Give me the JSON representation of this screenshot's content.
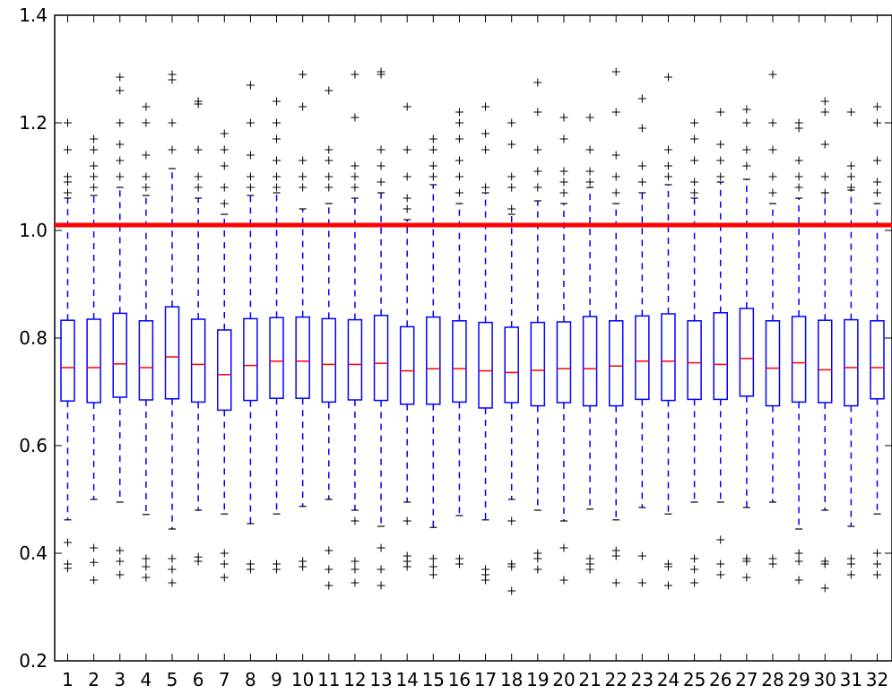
{
  "chart_data": {
    "type": "box",
    "title": "",
    "xlabel": "",
    "ylabel": "",
    "ylim": [
      0.2,
      1.4
    ],
    "y_ticks": [
      "0.2",
      "0.4",
      "0.6",
      "0.8",
      "1.0",
      "1.2",
      "1.4"
    ],
    "categories": [
      "1",
      "2",
      "3",
      "4",
      "5",
      "6",
      "7",
      "8",
      "9",
      "10",
      "11",
      "12",
      "13",
      "14",
      "15",
      "16",
      "17",
      "18",
      "19",
      "20",
      "21",
      "22",
      "23",
      "24",
      "25",
      "26",
      "27",
      "28",
      "29",
      "30",
      "31",
      "32"
    ],
    "grid": false,
    "reference_line": {
      "y": 1.01,
      "color": "#ff0000"
    },
    "colors": {
      "box": "#0000ff",
      "median": "#ff0000",
      "flier": "#000000",
      "axes": "#000000"
    },
    "boxes": [
      {
        "q1": 0.683,
        "median": 0.745,
        "q3": 0.833,
        "whisker_low": 0.462,
        "whisker_high": 1.06,
        "fliers": [
          0.42,
          0.38,
          0.372,
          1.07,
          1.09,
          1.1,
          1.15,
          1.2
        ]
      },
      {
        "q1": 0.68,
        "median": 0.745,
        "q3": 0.835,
        "whisker_low": 0.5,
        "whisker_high": 1.065,
        "fliers": [
          0.41,
          0.383,
          0.35,
          1.08,
          1.1,
          1.12,
          1.15,
          1.17
        ]
      },
      {
        "q1": 0.69,
        "median": 0.752,
        "q3": 0.846,
        "whisker_low": 0.495,
        "whisker_high": 1.08,
        "fliers": [
          0.405,
          0.385,
          0.36,
          1.1,
          1.13,
          1.16,
          1.2,
          1.26,
          1.285
        ]
      },
      {
        "q1": 0.685,
        "median": 0.745,
        "q3": 0.832,
        "whisker_low": 0.472,
        "whisker_high": 1.065,
        "fliers": [
          0.39,
          0.375,
          0.355,
          1.08,
          1.1,
          1.14,
          1.2,
          1.23
        ]
      },
      {
        "q1": 0.687,
        "median": 0.765,
        "q3": 0.858,
        "whisker_low": 0.445,
        "whisker_high": 1.115,
        "fliers": [
          0.39,
          0.37,
          0.345,
          1.15,
          1.2,
          1.28,
          1.29
        ]
      },
      {
        "q1": 0.681,
        "median": 0.751,
        "q3": 0.835,
        "whisker_low": 0.48,
        "whisker_high": 1.06,
        "fliers": [
          0.393,
          0.385,
          1.08,
          1.1,
          1.15,
          1.235,
          1.24
        ]
      },
      {
        "q1": 0.666,
        "median": 0.732,
        "q3": 0.815,
        "whisker_low": 0.473,
        "whisker_high": 1.03,
        "fliers": [
          0.4,
          0.38,
          0.355,
          1.05,
          1.08,
          1.12,
          1.15,
          1.18
        ]
      },
      {
        "q1": 0.684,
        "median": 0.749,
        "q3": 0.836,
        "whisker_low": 0.455,
        "whisker_high": 1.065,
        "fliers": [
          0.38,
          0.37,
          1.08,
          1.1,
          1.14,
          1.2,
          1.27
        ]
      },
      {
        "q1": 0.688,
        "median": 0.757,
        "q3": 0.838,
        "whisker_low": 0.473,
        "whisker_high": 1.07,
        "fliers": [
          0.38,
          0.37,
          1.08,
          1.1,
          1.13,
          1.17,
          1.2,
          1.24
        ]
      },
      {
        "q1": 0.688,
        "median": 0.757,
        "q3": 0.839,
        "whisker_low": 0.487,
        "whisker_high": 1.04,
        "fliers": [
          0.385,
          0.375,
          1.08,
          1.1,
          1.13,
          1.23,
          1.29
        ]
      },
      {
        "q1": 0.681,
        "median": 0.751,
        "q3": 0.836,
        "whisker_low": 0.5,
        "whisker_high": 1.05,
        "fliers": [
          0.405,
          0.37,
          0.34,
          1.08,
          1.1,
          1.13,
          1.15,
          1.26
        ]
      },
      {
        "q1": 0.685,
        "median": 0.751,
        "q3": 0.834,
        "whisker_low": 0.48,
        "whisker_high": 1.06,
        "fliers": [
          0.46,
          0.385,
          0.37,
          0.345,
          1.08,
          1.1,
          1.12,
          1.21,
          1.29
        ]
      },
      {
        "q1": 0.684,
        "median": 0.753,
        "q3": 0.842,
        "whisker_low": 0.45,
        "whisker_high": 1.07,
        "fliers": [
          0.41,
          0.37,
          0.34,
          1.09,
          1.12,
          1.15,
          1.29,
          1.295
        ]
      },
      {
        "q1": 0.677,
        "median": 0.739,
        "q3": 0.821,
        "whisker_low": 0.495,
        "whisker_high": 1.02,
        "fliers": [
          0.46,
          0.395,
          0.385,
          0.375,
          1.04,
          1.06,
          1.1,
          1.15,
          1.23
        ]
      },
      {
        "q1": 0.677,
        "median": 0.743,
        "q3": 0.839,
        "whisker_low": 0.448,
        "whisker_high": 1.085,
        "fliers": [
          0.39,
          0.375,
          0.36,
          1.1,
          1.12,
          1.15,
          1.17
        ]
      },
      {
        "q1": 0.681,
        "median": 0.743,
        "q3": 0.832,
        "whisker_low": 0.47,
        "whisker_high": 1.05,
        "fliers": [
          0.39,
          0.38,
          1.07,
          1.1,
          1.13,
          1.17,
          1.2,
          1.22
        ]
      },
      {
        "q1": 0.67,
        "median": 0.739,
        "q3": 0.829,
        "whisker_low": 0.462,
        "whisker_high": 1.07,
        "fliers": [
          0.37,
          0.36,
          0.35,
          1.08,
          1.15,
          1.18,
          1.23
        ]
      },
      {
        "q1": 0.68,
        "median": 0.736,
        "q3": 0.82,
        "whisker_low": 0.5,
        "whisker_high": 1.03,
        "fliers": [
          0.46,
          0.38,
          0.375,
          0.33,
          1.04,
          1.08,
          1.1,
          1.16,
          1.2
        ]
      },
      {
        "q1": 0.674,
        "median": 0.74,
        "q3": 0.829,
        "whisker_low": 0.48,
        "whisker_high": 1.055,
        "fliers": [
          0.4,
          0.39,
          0.37,
          1.08,
          1.11,
          1.15,
          1.22,
          1.275
        ]
      },
      {
        "q1": 0.68,
        "median": 0.743,
        "q3": 0.83,
        "whisker_low": 0.46,
        "whisker_high": 1.05,
        "fliers": [
          0.41,
          0.35,
          1.07,
          1.09,
          1.11,
          1.17,
          1.21
        ]
      },
      {
        "q1": 0.674,
        "median": 0.743,
        "q3": 0.84,
        "whisker_low": 0.482,
        "whisker_high": 1.08,
        "fliers": [
          0.39,
          0.38,
          0.37,
          1.09,
          1.11,
          1.15,
          1.21
        ]
      },
      {
        "q1": 0.674,
        "median": 0.748,
        "q3": 0.832,
        "whisker_low": 0.462,
        "whisker_high": 1.05,
        "fliers": [
          0.405,
          0.395,
          0.345,
          1.07,
          1.1,
          1.14,
          1.22,
          1.295
        ]
      },
      {
        "q1": 0.686,
        "median": 0.757,
        "q3": 0.841,
        "whisker_low": 0.485,
        "whisker_high": 1.07,
        "fliers": [
          0.395,
          0.345,
          1.09,
          1.12,
          1.19,
          1.245
        ]
      },
      {
        "q1": 0.684,
        "median": 0.757,
        "q3": 0.845,
        "whisker_low": 0.473,
        "whisker_high": 1.085,
        "fliers": [
          0.38,
          0.375,
          0.34,
          1.1,
          1.12,
          1.15,
          1.285
        ]
      },
      {
        "q1": 0.686,
        "median": 0.754,
        "q3": 0.832,
        "whisker_low": 0.495,
        "whisker_high": 1.06,
        "fliers": [
          0.39,
          0.37,
          0.345,
          1.07,
          1.09,
          1.13,
          1.17,
          1.2
        ]
      },
      {
        "q1": 0.686,
        "median": 0.751,
        "q3": 0.847,
        "whisker_low": 0.495,
        "whisker_high": 1.09,
        "fliers": [
          0.425,
          0.38,
          0.36,
          1.1,
          1.13,
          1.16,
          1.22
        ]
      },
      {
        "q1": 0.692,
        "median": 0.762,
        "q3": 0.855,
        "whisker_low": 0.485,
        "whisker_high": 1.095,
        "fliers": [
          0.39,
          0.385,
          0.355,
          1.12,
          1.15,
          1.2,
          1.225
        ]
      },
      {
        "q1": 0.674,
        "median": 0.744,
        "q3": 0.832,
        "whisker_low": 0.495,
        "whisker_high": 1.05,
        "fliers": [
          0.39,
          0.38,
          1.07,
          1.1,
          1.15,
          1.2,
          1.29
        ]
      },
      {
        "q1": 0.681,
        "median": 0.754,
        "q3": 0.84,
        "whisker_low": 0.445,
        "whisker_high": 1.06,
        "fliers": [
          0.4,
          0.385,
          0.35,
          1.08,
          1.1,
          1.13,
          1.19,
          1.2
        ]
      },
      {
        "q1": 0.68,
        "median": 0.741,
        "q3": 0.833,
        "whisker_low": 0.48,
        "whisker_high": 1.07,
        "fliers": [
          0.385,
          0.38,
          0.335,
          1.07,
          1.1,
          1.16,
          1.22,
          1.24
        ]
      },
      {
        "q1": 0.674,
        "median": 0.745,
        "q3": 0.834,
        "whisker_low": 0.45,
        "whisker_high": 1.075,
        "fliers": [
          0.39,
          0.38,
          0.36,
          1.08,
          1.1,
          1.12,
          1.22
        ]
      },
      {
        "q1": 0.687,
        "median": 0.745,
        "q3": 0.832,
        "whisker_low": 0.473,
        "whisker_high": 1.05,
        "fliers": [
          0.4,
          0.38,
          0.36,
          1.07,
          1.09,
          1.13,
          1.2,
          1.23
        ]
      }
    ]
  }
}
